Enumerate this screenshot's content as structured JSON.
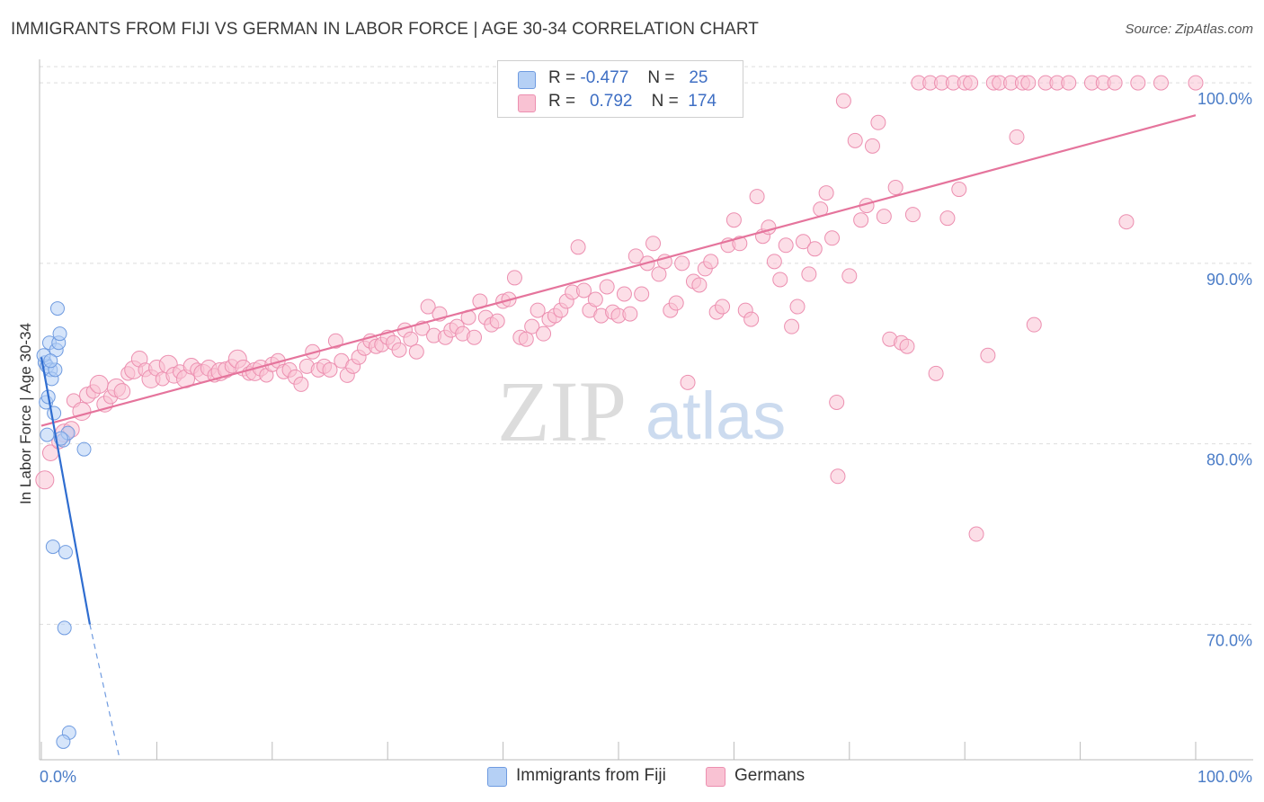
{
  "title": "IMMIGRANTS FROM FIJI VS GERMAN IN LABOR FORCE | AGE 30-34 CORRELATION CHART",
  "source": "Source: ZipAtlas.com",
  "watermark": {
    "zip": "ZIP",
    "atlas": "atlas"
  },
  "legend": {
    "rows": [
      {
        "r_label": "R =",
        "r_value": "-0.477",
        "n_label": "N =",
        "n_value": "25",
        "color": "#b5d0f5",
        "stroke": "#6f9be0"
      },
      {
        "r_label": "R =",
        "r_value": "0.792",
        "n_label": "N =",
        "n_value": "174",
        "color": "#f9c2d3",
        "stroke": "#ec8fb0"
      }
    ]
  },
  "bottom_legend": [
    {
      "label": "Immigrants from Fiji",
      "color": "#b5d0f5",
      "stroke": "#6f9be0"
    },
    {
      "label": "Germans",
      "color": "#f9c2d3",
      "stroke": "#ec8fb0"
    }
  ],
  "chart_data": {
    "type": "scatter",
    "title": "IMMIGRANTS FROM FIJI VS GERMAN IN LABOR FORCE | AGE 30-34 CORRELATION CHART",
    "xlabel": "",
    "ylabel": "In Labor Force | Age 30-34",
    "xlim": [
      0,
      100
    ],
    "ylim": [
      62.5,
      101.3
    ],
    "x_tick_labels": [
      "0.0%",
      "100.0%"
    ],
    "y_ticks": [
      70,
      80,
      90,
      100
    ],
    "y_tick_labels": [
      "70.0%",
      "80.0%",
      "90.0%",
      "100.0%"
    ],
    "grid": true,
    "series": [
      {
        "name": "Immigrants from Fiji",
        "color": "#6f9be0",
        "fill": "#b5d0f5",
        "trend": {
          "x0": 0,
          "y0": 84.8,
          "x1": 4.2,
          "y1": 70.0,
          "dashed_to_x": 6.8
        },
        "points": [
          [
            0.3,
            84.5
          ],
          [
            0.5,
            84.3
          ],
          [
            0.4,
            82.3
          ],
          [
            0.6,
            82.6
          ],
          [
            0.7,
            85.6
          ],
          [
            0.8,
            84.1
          ],
          [
            0.9,
            83.6
          ],
          [
            1.1,
            81.7
          ],
          [
            1.2,
            84.1
          ],
          [
            1.3,
            85.2
          ],
          [
            1.4,
            87.5
          ],
          [
            1.5,
            85.6
          ],
          [
            1.6,
            86.1
          ],
          [
            0.5,
            80.5
          ],
          [
            1.9,
            80.2
          ],
          [
            2.3,
            80.6
          ],
          [
            1.0,
            74.3
          ],
          [
            2.1,
            74.0
          ],
          [
            2.0,
            69.8
          ],
          [
            2.4,
            64.0
          ],
          [
            1.9,
            63.5
          ],
          [
            3.7,
            79.7
          ],
          [
            0.2,
            84.9
          ],
          [
            0.8,
            84.6
          ],
          [
            1.7,
            80.3
          ]
        ]
      },
      {
        "name": "Germans",
        "color": "#ec8fb0",
        "fill": "#f9c2d3",
        "trend": {
          "x0": 0,
          "y0": 81.0,
          "x1": 100,
          "y1": 98.2
        },
        "points": [
          [
            0.3,
            78.0
          ],
          [
            0.8,
            79.5
          ],
          [
            1.5,
            80.1
          ],
          [
            2.0,
            80.6
          ],
          [
            2.6,
            80.8
          ],
          [
            2.8,
            82.4
          ],
          [
            3.5,
            81.8
          ],
          [
            4.0,
            82.7
          ],
          [
            4.5,
            82.9
          ],
          [
            5.0,
            83.3
          ],
          [
            5.5,
            82.2
          ],
          [
            6.0,
            82.6
          ],
          [
            6.5,
            83.1
          ],
          [
            7.0,
            82.9
          ],
          [
            7.5,
            83.9
          ],
          [
            8.0,
            84.1
          ],
          [
            8.5,
            84.7
          ],
          [
            9.0,
            84.1
          ],
          [
            9.5,
            83.6
          ],
          [
            10.0,
            84.2
          ],
          [
            10.5,
            83.6
          ],
          [
            11.0,
            84.4
          ],
          [
            11.5,
            83.8
          ],
          [
            12.0,
            84.0
          ],
          [
            12.5,
            83.6
          ],
          [
            13.0,
            84.3
          ],
          [
            13.5,
            84.1
          ],
          [
            14.0,
            83.9
          ],
          [
            14.5,
            84.2
          ],
          [
            15.0,
            83.8
          ],
          [
            15.5,
            84.0
          ],
          [
            16.0,
            84.1
          ],
          [
            16.5,
            84.3
          ],
          [
            17.0,
            84.7
          ],
          [
            17.5,
            84.2
          ],
          [
            18.0,
            83.9
          ],
          [
            18.5,
            84.0
          ],
          [
            19.0,
            84.2
          ],
          [
            19.5,
            83.8
          ],
          [
            20.0,
            84.4
          ],
          [
            20.5,
            84.6
          ],
          [
            21.0,
            84.0
          ],
          [
            21.5,
            84.1
          ],
          [
            22.0,
            83.7
          ],
          [
            22.5,
            83.3
          ],
          [
            23.0,
            84.3
          ],
          [
            23.5,
            85.1
          ],
          [
            24.0,
            84.1
          ],
          [
            24.5,
            84.3
          ],
          [
            25.0,
            84.1
          ],
          [
            25.5,
            85.7
          ],
          [
            26.0,
            84.6
          ],
          [
            26.5,
            83.8
          ],
          [
            27.0,
            84.3
          ],
          [
            27.5,
            84.8
          ],
          [
            28.0,
            85.3
          ],
          [
            28.5,
            85.7
          ],
          [
            29.0,
            85.4
          ],
          [
            29.5,
            85.5
          ],
          [
            30.0,
            85.9
          ],
          [
            30.5,
            85.6
          ],
          [
            31.0,
            85.2
          ],
          [
            31.5,
            86.3
          ],
          [
            32.0,
            85.8
          ],
          [
            32.5,
            85.1
          ],
          [
            33.0,
            86.4
          ],
          [
            33.5,
            87.6
          ],
          [
            34.0,
            86.0
          ],
          [
            34.5,
            87.2
          ],
          [
            35.0,
            85.9
          ],
          [
            35.5,
            86.3
          ],
          [
            36.0,
            86.5
          ],
          [
            36.5,
            86.1
          ],
          [
            37.0,
            87.0
          ],
          [
            37.5,
            85.9
          ],
          [
            38.0,
            87.9
          ],
          [
            38.5,
            87.0
          ],
          [
            39.0,
            86.6
          ],
          [
            39.5,
            86.8
          ],
          [
            40.0,
            87.9
          ],
          [
            40.5,
            88.0
          ],
          [
            41.0,
            89.2
          ],
          [
            41.5,
            85.9
          ],
          [
            42.0,
            85.8
          ],
          [
            42.5,
            86.5
          ],
          [
            43.0,
            87.4
          ],
          [
            43.5,
            86.1
          ],
          [
            44.0,
            86.9
          ],
          [
            44.5,
            87.1
          ],
          [
            45.0,
            87.4
          ],
          [
            45.5,
            87.9
          ],
          [
            46.0,
            88.4
          ],
          [
            46.5,
            90.9
          ],
          [
            47.0,
            88.5
          ],
          [
            47.5,
            87.4
          ],
          [
            48.0,
            88.0
          ],
          [
            48.5,
            87.1
          ],
          [
            49.0,
            88.7
          ],
          [
            49.5,
            87.3
          ],
          [
            50.0,
            87.1
          ],
          [
            50.5,
            88.3
          ],
          [
            51.0,
            87.2
          ],
          [
            51.5,
            90.4
          ],
          [
            52.0,
            88.3
          ],
          [
            52.5,
            90.0
          ],
          [
            53.0,
            91.1
          ],
          [
            53.5,
            89.4
          ],
          [
            54.0,
            90.1
          ],
          [
            54.5,
            87.4
          ],
          [
            55.0,
            87.8
          ],
          [
            55.5,
            90.0
          ],
          [
            56.0,
            83.4
          ],
          [
            56.5,
            89.0
          ],
          [
            57.0,
            88.8
          ],
          [
            57.5,
            89.7
          ],
          [
            58.0,
            90.1
          ],
          [
            58.5,
            87.3
          ],
          [
            59.0,
            87.6
          ],
          [
            59.5,
            91.0
          ],
          [
            60.0,
            92.4
          ],
          [
            60.5,
            91.1
          ],
          [
            61.0,
            87.4
          ],
          [
            61.5,
            86.9
          ],
          [
            62.0,
            93.7
          ],
          [
            62.5,
            91.5
          ],
          [
            63.0,
            92.0
          ],
          [
            63.5,
            90.1
          ],
          [
            64.0,
            89.1
          ],
          [
            64.5,
            91.0
          ],
          [
            65.0,
            86.5
          ],
          [
            65.5,
            87.6
          ],
          [
            66.0,
            91.2
          ],
          [
            66.5,
            89.4
          ],
          [
            67.0,
            90.8
          ],
          [
            67.5,
            93.0
          ],
          [
            68.0,
            93.9
          ],
          [
            68.5,
            91.4
          ],
          [
            69.0,
            78.2
          ],
          [
            69.5,
            99.0
          ],
          [
            70.0,
            89.3
          ],
          [
            70.5,
            96.8
          ],
          [
            71.0,
            92.4
          ],
          [
            71.5,
            93.2
          ],
          [
            72.0,
            96.5
          ],
          [
            72.5,
            97.8
          ],
          [
            73.0,
            92.6
          ],
          [
            73.5,
            85.8
          ],
          [
            74.0,
            94.2
          ],
          [
            74.5,
            85.6
          ],
          [
            75.0,
            85.4
          ],
          [
            75.5,
            92.7
          ],
          [
            76.0,
            100.0
          ],
          [
            77.0,
            100.0
          ],
          [
            77.5,
            83.9
          ],
          [
            78.0,
            100.0
          ],
          [
            78.5,
            92.5
          ],
          [
            79.0,
            100.0
          ],
          [
            79.5,
            94.1
          ],
          [
            80.0,
            100.0
          ],
          [
            80.5,
            100.0
          ],
          [
            81.0,
            75.0
          ],
          [
            82.0,
            84.9
          ],
          [
            82.5,
            100.0
          ],
          [
            83.0,
            100.0
          ],
          [
            84.0,
            100.0
          ],
          [
            85.0,
            100.0
          ],
          [
            86.0,
            86.6
          ],
          [
            87.0,
            100.0
          ],
          [
            88.0,
            100.0
          ],
          [
            89.0,
            100.0
          ],
          [
            91.0,
            100.0
          ],
          [
            92.0,
            100.0
          ],
          [
            93.0,
            100.0
          ],
          [
            95.0,
            100.0
          ],
          [
            97.0,
            100.0
          ],
          [
            100.0,
            100.0
          ],
          [
            84.5,
            97.0
          ],
          [
            85.5,
            100.0
          ],
          [
            94.0,
            92.3
          ],
          [
            68.9,
            82.3
          ]
        ]
      }
    ]
  }
}
